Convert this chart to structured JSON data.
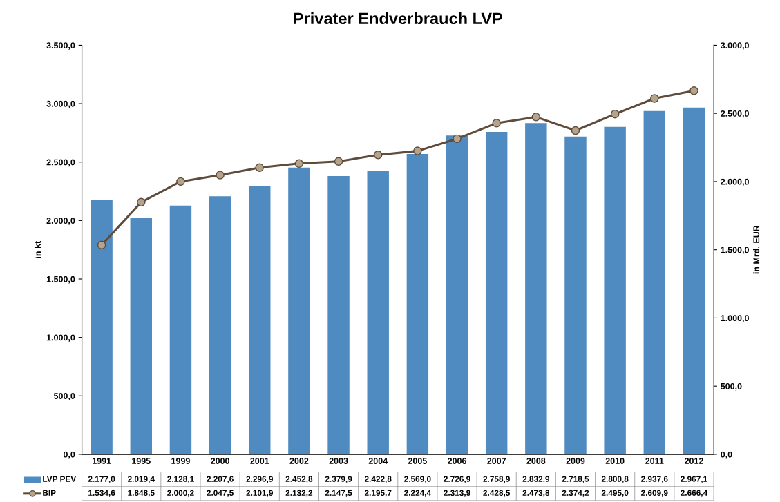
{
  "chart_data": {
    "type": "bar",
    "title": "Privater Endverbrauch LVP",
    "ylabel": "in kt",
    "y2label": "in Mrd. EUR",
    "categories": [
      "1991",
      "1995",
      "1999",
      "2000",
      "2001",
      "2002",
      "2003",
      "2004",
      "2005",
      "2006",
      "2007",
      "2008",
      "2009",
      "2010",
      "2011",
      "2012"
    ],
    "series": [
      {
        "name": "LVP PEV",
        "color": "#4f8bc0",
        "values": [
          2177.0,
          2019.4,
          2128.1,
          2207.6,
          2296.9,
          2452.8,
          2379.9,
          2422.8,
          2569.0,
          2726.9,
          2758.9,
          2832.9,
          2718.5,
          2800.8,
          2937.6,
          2967.1
        ],
        "value_labels": [
          "2.177,0",
          "2.019,4",
          "2.128,1",
          "2.207,6",
          "2.296,9",
          "2.452,8",
          "2.379,9",
          "2.422,8",
          "2.569,0",
          "2.726,9",
          "2.758,9",
          "2.832,9",
          "2.718,5",
          "2.800,8",
          "2.937,6",
          "2.967,1"
        ]
      },
      {
        "name": "BIP",
        "type": "line",
        "axis": "y2",
        "color": "#5e4b3c",
        "marker": "circle",
        "values": [
          1534.6,
          1848.5,
          2000.2,
          2047.5,
          2101.9,
          2132.2,
          2147.5,
          2195.7,
          2224.4,
          2313.9,
          2428.5,
          2473.8,
          2374.2,
          2495.0,
          2609.9,
          2666.4
        ],
        "value_labels": [
          "1.534,6",
          "1.848,5",
          "2.000,2",
          "2.047,5",
          "2.101,9",
          "2.132,2",
          "2.147,5",
          "2.195,7",
          "2.224,4",
          "2.313,9",
          "2.428,5",
          "2.473,8",
          "2.374,2",
          "2.495,0",
          "2.609,9",
          "2.666,4"
        ]
      }
    ],
    "ylim": [
      0,
      3500
    ],
    "yticks": [
      {
        "value": 0,
        "label": "0,0"
      },
      {
        "value": 500,
        "label": "500,0"
      },
      {
        "value": 1000,
        "label": "1.000,0"
      },
      {
        "value": 1500,
        "label": "1.500,0"
      },
      {
        "value": 2000,
        "label": "2.000,0"
      },
      {
        "value": 2500,
        "label": "2.500,0"
      },
      {
        "value": 3000,
        "label": "3.000,0"
      },
      {
        "value": 3500,
        "label": "3.500,0"
      }
    ],
    "y2lim": [
      0,
      3000
    ],
    "y2ticks": [
      {
        "value": 0,
        "label": "0,0"
      },
      {
        "value": 500,
        "label": "500,0"
      },
      {
        "value": 1000,
        "label": "1.000,0"
      },
      {
        "value": 1500,
        "label": "1.500,0"
      },
      {
        "value": 2000,
        "label": "2.000,0"
      },
      {
        "value": 2500,
        "label": "2.500,0"
      },
      {
        "value": 3000,
        "label": "3.000,0"
      }
    ],
    "grid": false,
    "legend": "bottom"
  }
}
